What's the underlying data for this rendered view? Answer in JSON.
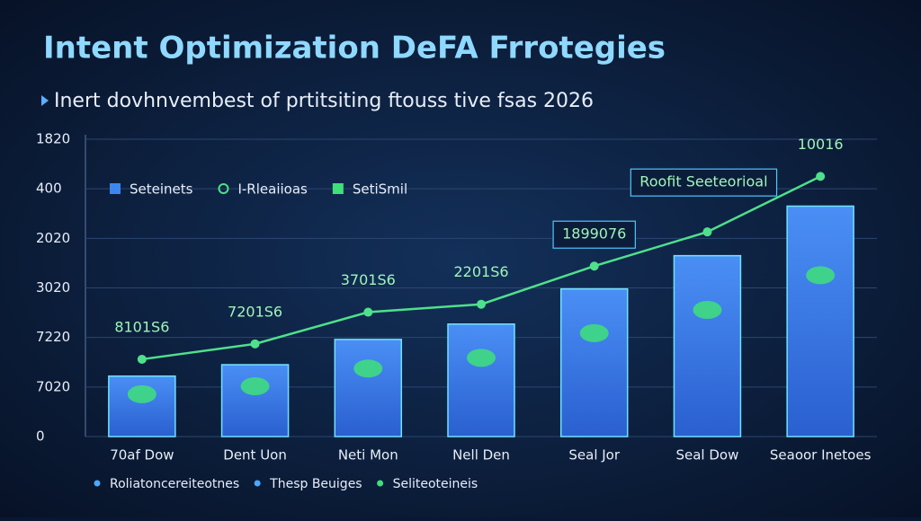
{
  "chart_data": {
    "type": "bar",
    "title": "Intent Optimization DeFA Frrotegies",
    "subtitle": "Inert dovhnvembest of prtitsiting ftouss tive fsas 2026",
    "categories": [
      "70af Dow",
      "Dent Uon",
      "Neti Mon",
      "Nell Den",
      "Seal Jor",
      "Seal Dow",
      "Seaoor Inetoes"
    ],
    "series": [
      {
        "name": "Seteinets",
        "type": "bar",
        "color": "#3d86f0",
        "values": [
          1.22,
          1.45,
          1.96,
          2.27,
          2.98,
          3.65,
          4.65
        ]
      },
      {
        "name": "I-Rleaiioas",
        "type": "line",
        "color": "#4fe08c",
        "values": [
          1.56,
          1.87,
          2.51,
          2.67,
          3.44,
          4.13,
          5.25
        ],
        "point_labels": [
          "8101S6",
          "7201S6",
          "3701S6",
          "2201S6",
          "1899076",
          "Roofit Seeteorioal",
          "10016"
        ]
      }
    ],
    "extra_legend": {
      "name": "SetiSmil",
      "color": "#3ee07a"
    },
    "footer_legend": [
      "Roliatoncereiteotnes",
      "Thesp Beuiges",
      "Seliteoteineis"
    ],
    "ylim": [
      0,
      6
    ],
    "yticks": [
      {
        "value": 0,
        "label": "0"
      },
      {
        "value": 1,
        "label": "7020"
      },
      {
        "value": 2,
        "label": "7220"
      },
      {
        "value": 3,
        "label": "3020"
      },
      {
        "value": 4,
        "label": "2020"
      },
      {
        "value": 5,
        "label": "400"
      },
      {
        "value": 6,
        "label": "1820"
      }
    ],
    "grid": true
  }
}
